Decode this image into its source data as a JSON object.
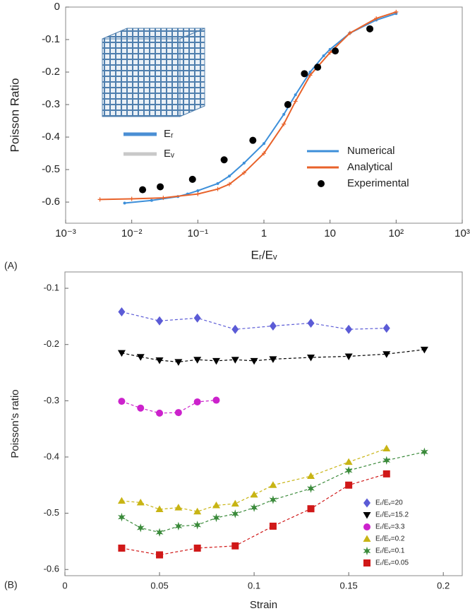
{
  "panels": [
    "(A)",
    "(B)"
  ],
  "inset_legend": {
    "labels": [
      "Eᵣ",
      "Eᵥ"
    ],
    "colors": [
      "#4a8fd4",
      "#c8c8c8"
    ]
  },
  "chart_data": [
    {
      "type": "line",
      "xscale": "log",
      "xlabel": "Eᵣ/Eᵥ",
      "ylabel": "Poisson Ratio",
      "xlim": [
        0.001,
        1000
      ],
      "ylim": [
        -0.665,
        0
      ],
      "xticks": [
        {
          "value": 0.001,
          "label": "10⁻³"
        },
        {
          "value": 0.01,
          "label": "10⁻²"
        },
        {
          "value": 0.1,
          "label": "10⁻¹"
        },
        1,
        10,
        {
          "value": 100,
          "label": "10²"
        },
        {
          "value": 1000,
          "label": "10³"
        }
      ],
      "yticks": [
        0,
        -0.1,
        -0.2,
        -0.3,
        -0.4,
        -0.5,
        -0.6
      ],
      "grid": false,
      "legend": "lower right",
      "series": [
        {
          "name": "Numerical",
          "color": "#3d8fd9",
          "line": true,
          "marker": "dot",
          "x": [
            0.0078,
            0.02,
            0.05,
            0.07,
            0.1,
            0.2,
            0.3,
            0.5,
            1,
            2,
            3,
            5,
            8,
            10,
            20,
            50,
            100
          ],
          "values": [
            -0.603,
            -0.595,
            -0.583,
            -0.575,
            -0.565,
            -0.543,
            -0.52,
            -0.48,
            -0.42,
            -0.33,
            -0.27,
            -0.2,
            -0.15,
            -0.13,
            -0.08,
            -0.04,
            -0.02
          ]
        },
        {
          "name": "Analytical",
          "color": "#e8622a",
          "line": true,
          "marker": "plus",
          "x": [
            0.0033,
            0.01,
            0.03,
            0.1,
            0.2,
            0.3,
            0.5,
            1,
            2,
            3,
            5,
            10,
            20,
            50,
            100
          ],
          "values": [
            -0.592,
            -0.59,
            -0.587,
            -0.575,
            -0.56,
            -0.545,
            -0.51,
            -0.45,
            -0.36,
            -0.29,
            -0.21,
            -0.14,
            -0.08,
            -0.035,
            -0.015
          ]
        },
        {
          "name": "Experimental",
          "color": "#000000",
          "line": false,
          "marker": "circle",
          "x": [
            0.0146,
            0.027,
            0.083,
            0.25,
            0.68,
            2.3,
            4.1,
            6.5,
            12,
            40
          ],
          "values": [
            -0.562,
            -0.553,
            -0.53,
            -0.47,
            -0.41,
            -0.3,
            -0.205,
            -0.185,
            -0.135,
            -0.067
          ]
        }
      ]
    },
    {
      "type": "line",
      "xscale": "linear",
      "xlabel": "Strain",
      "ylabel": "Poisson’s ratio",
      "xlim": [
        0,
        0.21
      ],
      "ylim": [
        -0.611,
        -0.071
      ],
      "xticks": [
        0,
        0.05,
        0.1,
        0.15,
        0.2
      ],
      "yticks": [
        -0.1,
        -0.2,
        -0.3,
        -0.4,
        -0.5,
        -0.6
      ],
      "grid": false,
      "legend": "lower right",
      "dashed": true,
      "series": [
        {
          "name": "Eᵣ/Eᵥ=20",
          "color": "#5b5bd6",
          "line": true,
          "marker": "diamond",
          "x": [
            0.03,
            0.05,
            0.07,
            0.09,
            0.11,
            0.13,
            0.15,
            0.17
          ],
          "values": [
            -0.142,
            -0.158,
            -0.153,
            -0.173,
            -0.167,
            -0.162,
            -0.173,
            -0.171
          ]
        },
        {
          "name": "Eᵣ/Eᵥ=15.2",
          "color": "#000000",
          "line": true,
          "marker": "triangle-down",
          "x": [
            0.03,
            0.04,
            0.05,
            0.06,
            0.07,
            0.08,
            0.09,
            0.1,
            0.11,
            0.13,
            0.15,
            0.17,
            0.19
          ],
          "values": [
            -0.215,
            -0.222,
            -0.228,
            -0.231,
            -0.227,
            -0.229,
            -0.227,
            -0.229,
            -0.226,
            -0.223,
            -0.221,
            -0.217,
            -0.209
          ]
        },
        {
          "name": "Eᵣ/Eᵥ=3.3",
          "color": "#cc22cc",
          "line": true,
          "marker": "circle",
          "x": [
            0.03,
            0.04,
            0.05,
            0.06,
            0.07,
            0.08
          ],
          "values": [
            -0.301,
            -0.313,
            -0.322,
            -0.321,
            -0.302,
            -0.299
          ]
        },
        {
          "name": "Eᵣ/Eᵥ=0.2",
          "color": "#c8b414",
          "line": true,
          "marker": "triangle-up",
          "x": [
            0.03,
            0.04,
            0.05,
            0.06,
            0.07,
            0.08,
            0.09,
            0.1,
            0.11,
            0.13,
            0.15,
            0.17
          ],
          "values": [
            -0.478,
            -0.481,
            -0.493,
            -0.49,
            -0.497,
            -0.486,
            -0.483,
            -0.467,
            -0.45,
            -0.434,
            -0.409,
            -0.385
          ]
        },
        {
          "name": "Eᵣ/Eᵥ=0.1",
          "color": "#3a8a3a",
          "line": true,
          "marker": "star",
          "x": [
            0.03,
            0.04,
            0.05,
            0.06,
            0.07,
            0.08,
            0.09,
            0.1,
            0.11,
            0.13,
            0.15,
            0.17,
            0.19
          ],
          "values": [
            -0.507,
            -0.526,
            -0.534,
            -0.523,
            -0.521,
            -0.508,
            -0.501,
            -0.49,
            -0.476,
            -0.456,
            -0.424,
            -0.406,
            -0.391
          ]
        },
        {
          "name": "Eᵣ/Eᵥ=0.05",
          "color": "#d01818",
          "line": true,
          "marker": "square",
          "x": [
            0.03,
            0.05,
            0.07,
            0.09,
            0.11,
            0.13,
            0.15,
            0.17
          ],
          "values": [
            -0.562,
            -0.574,
            -0.562,
            -0.558,
            -0.523,
            -0.492,
            -0.45,
            -0.43
          ]
        }
      ]
    }
  ]
}
